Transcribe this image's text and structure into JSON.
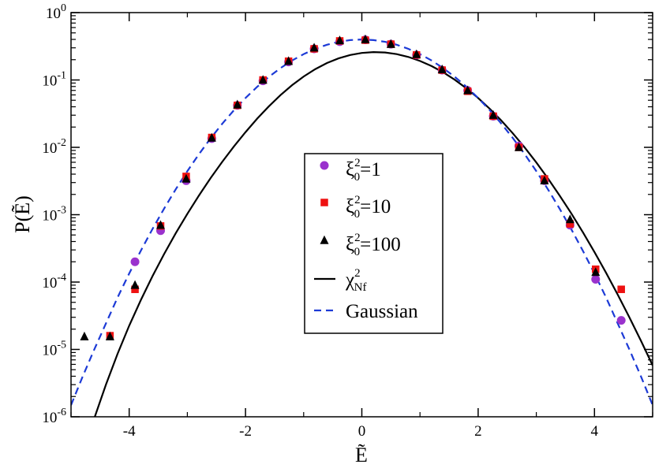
{
  "chart_data": {
    "type": "scatter",
    "xlabel": "Ẽ",
    "ylabel": "P(Ẽ)",
    "xlim": [
      -5,
      5
    ],
    "ylim": [
      1e-06,
      1
    ],
    "y_scale": "log",
    "grid": false,
    "legend_position": "center",
    "x_ticks": [
      {
        "value": -4,
        "label": "-4"
      },
      {
        "value": -2,
        "label": "-2"
      },
      {
        "value": 0,
        "label": "0"
      },
      {
        "value": 2,
        "label": "2"
      },
      {
        "value": 4,
        "label": "4"
      }
    ],
    "y_ticks": [
      {
        "value": 1e-06,
        "base": "10",
        "exp": "-6"
      },
      {
        "value": 1e-05,
        "base": "10",
        "exp": "-5"
      },
      {
        "value": 0.0001,
        "base": "10",
        "exp": "-4"
      },
      {
        "value": 0.001,
        "base": "10",
        "exp": "-3"
      },
      {
        "value": 0.01,
        "base": "10",
        "exp": "-2"
      },
      {
        "value": 0.1,
        "base": "10",
        "exp": "-1"
      },
      {
        "value": 1,
        "base": "10",
        "exp": "0"
      }
    ],
    "series": [
      {
        "name": "ξ0²=1",
        "label_main": "ξ",
        "label_sub": "0",
        "label_sup": "2",
        "label_tail": "=1",
        "marker": "circle",
        "color": "#9a32cd",
        "points": [
          [
            -3.9,
            0.0002
          ],
          [
            -3.46,
            0.00058
          ],
          [
            -3.02,
            0.0032
          ],
          [
            -2.58,
            0.0135
          ],
          [
            -2.14,
            0.042
          ],
          [
            -1.7,
            0.097
          ],
          [
            -1.26,
            0.185
          ],
          [
            -0.82,
            0.29
          ],
          [
            -0.38,
            0.37
          ],
          [
            0.06,
            0.395
          ],
          [
            0.5,
            0.34
          ],
          [
            0.94,
            0.235
          ],
          [
            1.38,
            0.14
          ],
          [
            1.82,
            0.07
          ],
          [
            2.26,
            0.029
          ],
          [
            2.7,
            0.0105
          ],
          [
            3.14,
            0.0032
          ],
          [
            3.58,
            0.0007
          ],
          [
            4.02,
            0.00011
          ],
          [
            4.46,
            2.7e-05
          ]
        ]
      },
      {
        "name": "ξ0²=10",
        "label_main": "ξ",
        "label_sub": "0",
        "label_sup": "2",
        "label_tail": "=10",
        "marker": "square",
        "color": "#ee1111",
        "points": [
          [
            -4.33,
            1.6e-05
          ],
          [
            -3.9,
            7.8e-05
          ],
          [
            -3.46,
            0.00068
          ],
          [
            -3.02,
            0.0037
          ],
          [
            -2.58,
            0.014
          ],
          [
            -2.14,
            0.042
          ],
          [
            -1.7,
            0.1
          ],
          [
            -1.26,
            0.19
          ],
          [
            -0.82,
            0.29
          ],
          [
            -0.38,
            0.38
          ],
          [
            0.06,
            0.39
          ],
          [
            0.5,
            0.34
          ],
          [
            0.94,
            0.235
          ],
          [
            1.38,
            0.14
          ],
          [
            1.82,
            0.068
          ],
          [
            2.26,
            0.029
          ],
          [
            2.7,
            0.01
          ],
          [
            3.14,
            0.0034
          ],
          [
            3.58,
            0.00073
          ],
          [
            4.02,
            0.000155
          ],
          [
            4.46,
            7.8e-05
          ]
        ]
      },
      {
        "name": "ξ0²=100",
        "label_main": "ξ",
        "label_sub": "0",
        "label_sup": "2",
        "label_tail": "=100",
        "marker": "triangle",
        "color": "#000000",
        "points": [
          [
            -4.77,
            1.55e-05
          ],
          [
            -4.33,
            1.55e-05
          ],
          [
            -3.9,
            9e-05
          ],
          [
            -3.46,
            0.0007
          ],
          [
            -3.02,
            0.0034
          ],
          [
            -2.58,
            0.0138
          ],
          [
            -2.14,
            0.043
          ],
          [
            -1.7,
            0.1
          ],
          [
            -1.26,
            0.19
          ],
          [
            -0.82,
            0.3
          ],
          [
            -0.38,
            0.385
          ],
          [
            0.06,
            0.4
          ],
          [
            0.5,
            0.34
          ],
          [
            0.94,
            0.24
          ],
          [
            1.38,
            0.143
          ],
          [
            1.82,
            0.07
          ],
          [
            2.26,
            0.03
          ],
          [
            2.7,
            0.01
          ],
          [
            3.14,
            0.0032
          ],
          [
            3.58,
            0.00085
          ],
          [
            4.02,
            0.00014
          ]
        ]
      },
      {
        "name": "χ²Nf",
        "label_main": "χ",
        "label_sup": "2",
        "label_sub": "Nf",
        "type": "line",
        "color": "#000000",
        "dash": "solid",
        "width": 2.2,
        "points": [
          [
            -4.6,
            9.5e-07
          ],
          [
            -4.4,
            3e-06
          ],
          [
            -4.2,
            8.6e-06
          ],
          [
            -4.0,
            2.25e-05
          ],
          [
            -3.8,
            5.4e-05
          ],
          [
            -3.6,
            0.000122
          ],
          [
            -3.4,
            0.00026
          ],
          [
            -3.2,
            0.00053
          ],
          [
            -3.0,
            0.00103
          ],
          [
            -2.8,
            0.00193
          ],
          [
            -2.6,
            0.0035
          ],
          [
            -2.4,
            0.0061
          ],
          [
            -2.2,
            0.0103
          ],
          [
            -2.0,
            0.0168
          ],
          [
            -1.8,
            0.0266
          ],
          [
            -1.6,
            0.0405
          ],
          [
            -1.4,
            0.0594
          ],
          [
            -1.2,
            0.0836
          ],
          [
            -1.0,
            0.1125
          ],
          [
            -0.8,
            0.1449
          ],
          [
            -0.6,
            0.1783
          ],
          [
            -0.4,
            0.2093
          ],
          [
            -0.2,
            0.2349
          ],
          [
            0.0,
            0.2521
          ],
          [
            0.2,
            0.2593
          ],
          [
            0.4,
            0.2556
          ],
          [
            0.6,
            0.2418
          ],
          [
            0.8,
            0.2197
          ],
          [
            1.0,
            0.1917
          ],
          [
            1.2,
            0.1608
          ],
          [
            1.4,
            0.1296
          ],
          [
            1.6,
            0.1005
          ],
          [
            1.8,
            0.075
          ],
          [
            2.0,
            0.0539
          ],
          [
            2.2,
            0.0373
          ],
          [
            2.4,
            0.0249
          ],
          [
            2.6,
            0.016
          ],
          [
            2.8,
            0.00995
          ],
          [
            3.0,
            0.00596
          ],
          [
            3.2,
            0.00345
          ],
          [
            3.4,
            0.00193
          ],
          [
            3.6,
            0.00105
          ],
          [
            3.8,
            0.00055
          ],
          [
            4.0,
            0.000279
          ],
          [
            4.2,
            0.000137
          ],
          [
            4.4,
            6.5e-05
          ],
          [
            4.6,
            3e-05
          ],
          [
            4.8,
            1.34e-05
          ],
          [
            5.0,
            5.8e-06
          ]
        ]
      },
      {
        "name": "Gaussian",
        "label_main": "Gaussian",
        "type": "line",
        "color": "#1c3ad6",
        "dash": "dashed",
        "width": 2.2,
        "points": [
          [
            -5.0,
            1.49e-06
          ],
          [
            -4.8,
            3.96e-06
          ],
          [
            -4.6,
            1e-05
          ],
          [
            -4.4,
            2.43e-05
          ],
          [
            -4.2,
            5.89e-05
          ],
          [
            -4.0,
            0.000134
          ],
          [
            -3.8,
            0.000292
          ],
          [
            -3.6,
            0.000612
          ],
          [
            -3.4,
            0.00123
          ],
          [
            -3.2,
            0.00238
          ],
          [
            -3.0,
            0.00443
          ],
          [
            -2.8,
            0.00792
          ],
          [
            -2.6,
            0.0136
          ],
          [
            -2.4,
            0.0224
          ],
          [
            -2.2,
            0.0355
          ],
          [
            -2.0,
            0.054
          ],
          [
            -1.8,
            0.079
          ],
          [
            -1.6,
            0.1109
          ],
          [
            -1.4,
            0.1497
          ],
          [
            -1.2,
            0.1942
          ],
          [
            -1.0,
            0.242
          ],
          [
            -0.8,
            0.2897
          ],
          [
            -0.6,
            0.3332
          ],
          [
            -0.4,
            0.3683
          ],
          [
            -0.2,
            0.391
          ],
          [
            0.0,
            0.3989
          ],
          [
            0.2,
            0.391
          ],
          [
            0.4,
            0.3683
          ],
          [
            0.6,
            0.3332
          ],
          [
            0.8,
            0.2897
          ],
          [
            1.0,
            0.242
          ],
          [
            1.2,
            0.1942
          ],
          [
            1.4,
            0.1497
          ],
          [
            1.6,
            0.1109
          ],
          [
            1.8,
            0.079
          ],
          [
            2.0,
            0.054
          ],
          [
            2.2,
            0.0355
          ],
          [
            2.4,
            0.0224
          ],
          [
            2.6,
            0.0136
          ],
          [
            2.8,
            0.00792
          ],
          [
            3.0,
            0.00443
          ],
          [
            3.2,
            0.00238
          ],
          [
            3.4,
            0.00123
          ],
          [
            3.6,
            0.000612
          ],
          [
            3.8,
            0.000292
          ],
          [
            4.0,
            0.000134
          ],
          [
            4.2,
            5.89e-05
          ],
          [
            4.4,
            2.43e-05
          ],
          [
            4.6,
            1e-05
          ],
          [
            4.8,
            3.96e-06
          ],
          [
            5.0,
            1.49e-06
          ]
        ]
      }
    ]
  }
}
